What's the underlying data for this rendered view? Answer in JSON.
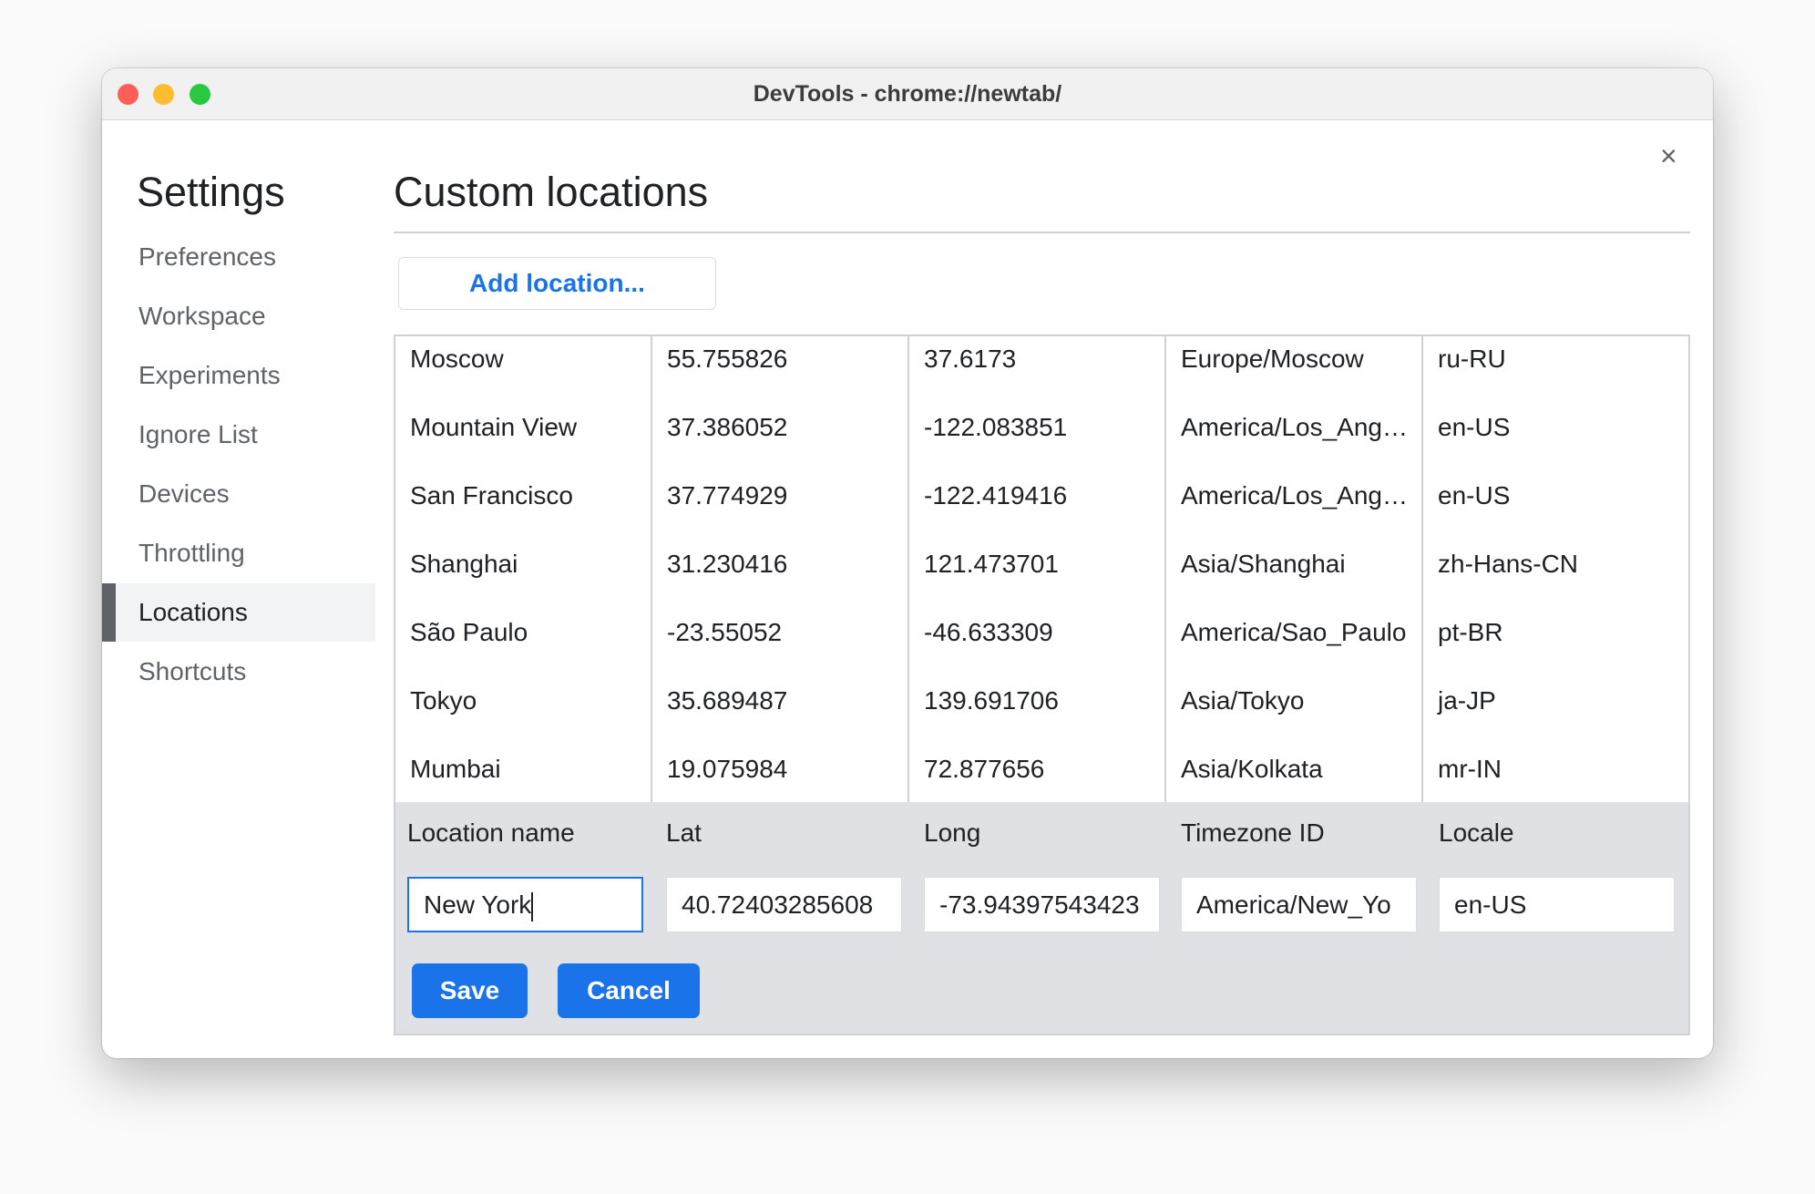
{
  "window": {
    "title": "DevTools - chrome://newtab/",
    "close_icon": "×",
    "traffic_lights": {
      "close": "#ff5f57",
      "minimize": "#febc2e",
      "zoom": "#28c840"
    }
  },
  "sidebar": {
    "title": "Settings",
    "selected": "Locations",
    "items": [
      {
        "label": "Preferences"
      },
      {
        "label": "Workspace"
      },
      {
        "label": "Experiments"
      },
      {
        "label": "Ignore List"
      },
      {
        "label": "Devices"
      },
      {
        "label": "Throttling"
      },
      {
        "label": "Locations"
      },
      {
        "label": "Shortcuts"
      }
    ]
  },
  "main": {
    "title": "Custom locations",
    "add_label": "Add location...",
    "rows": [
      [
        "Moscow",
        "55.755826",
        "37.6173",
        "Europe/Moscow",
        "ru-RU"
      ],
      [
        "Mountain View",
        "37.386052",
        "-122.083851",
        "America/Los_Angeles",
        "en-US"
      ],
      [
        "San Francisco",
        "37.774929",
        "-122.419416",
        "America/Los_Angeles",
        "en-US"
      ],
      [
        "Shanghai",
        "31.230416",
        "121.473701",
        "Asia/Shanghai",
        "zh-Hans-CN"
      ],
      [
        "São Paulo",
        "-23.55052",
        "-46.633309",
        "America/Sao_Paulo",
        "pt-BR"
      ],
      [
        "Tokyo",
        "35.689487",
        "139.691706",
        "Asia/Tokyo",
        "ja-JP"
      ],
      [
        "Mumbai",
        "19.075984",
        "72.877656",
        "Asia/Kolkata",
        "mr-IN"
      ]
    ],
    "editor": {
      "headers": [
        "Location name",
        "Lat",
        "Long",
        "Timezone ID",
        "Locale"
      ],
      "values": [
        "New York",
        "40.72403285608",
        "-73.94397543423",
        "America/New_Yo",
        "en-US"
      ],
      "save_label": "Save",
      "cancel_label": "Cancel"
    },
    "accent": "#1a73e8"
  }
}
